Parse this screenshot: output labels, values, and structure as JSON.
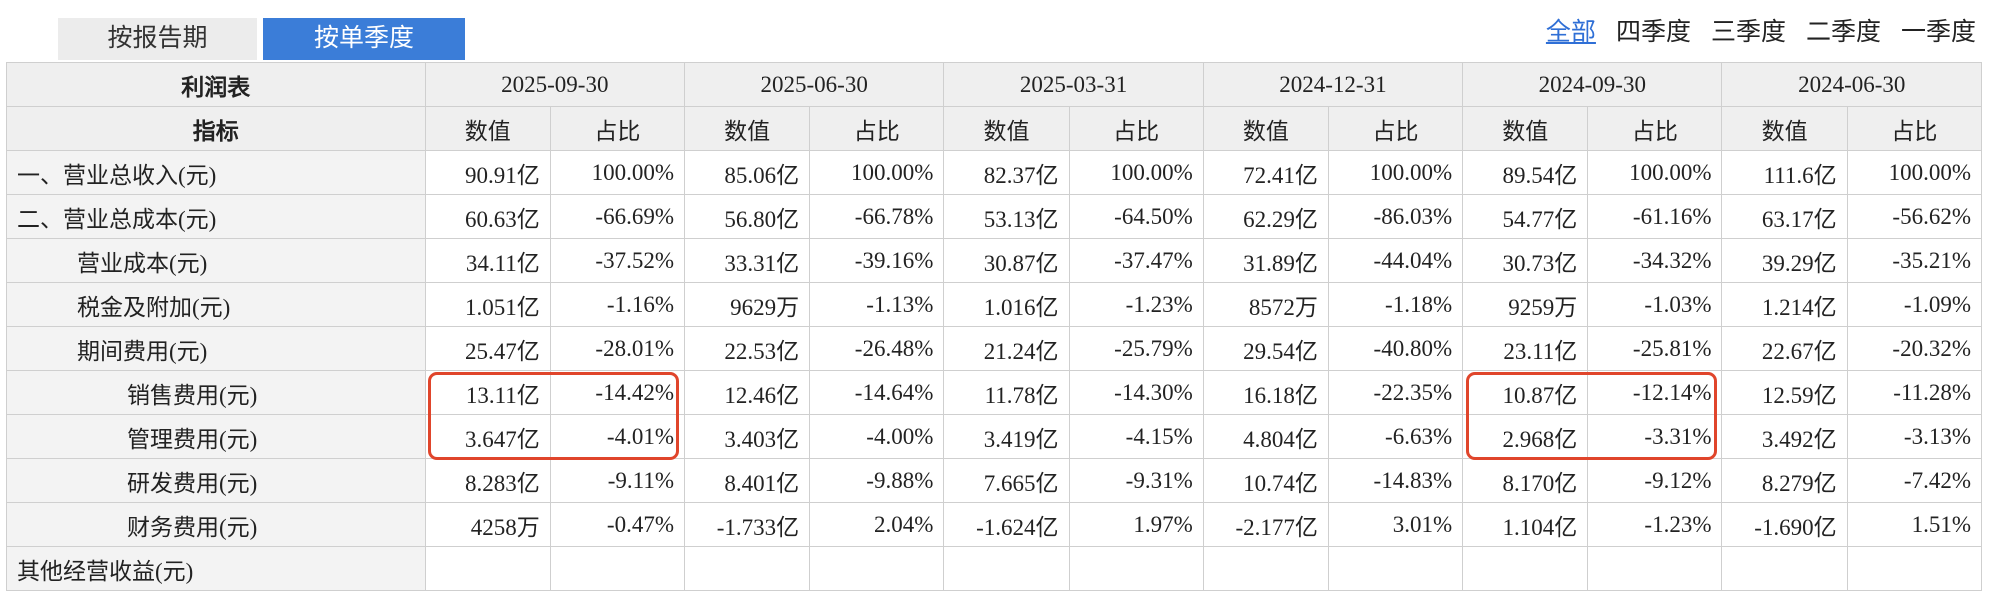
{
  "tabs": [
    "按报告期",
    "按单季度"
  ],
  "filters": [
    "全部",
    "四季度",
    "三季度",
    "二季度",
    "一季度"
  ],
  "table": {
    "title": "利润表",
    "periods": [
      "2025-09-30",
      "2025-06-30",
      "2025-03-31",
      "2024-12-31",
      "2024-09-30",
      "2024-06-30"
    ],
    "indicator_header": "指标",
    "value_header": "数值",
    "share_header": "占比",
    "rows": [
      [
        "一、营业总收入(元)",
        "90.91亿",
        "100.00%",
        "85.06亿",
        "100.00%",
        "82.37亿",
        "100.00%",
        "72.41亿",
        "100.00%",
        "89.54亿",
        "100.00%",
        "111.6亿",
        "100.00%"
      ],
      [
        "二、营业总成本(元)",
        "60.63亿",
        "-66.69%",
        "56.80亿",
        "-66.78%",
        "53.13亿",
        "-64.50%",
        "62.29亿",
        "-86.03%",
        "54.77亿",
        "-61.16%",
        "63.17亿",
        "-56.62%"
      ],
      [
        "营业成本(元)",
        "34.11亿",
        "-37.52%",
        "33.31亿",
        "-39.16%",
        "30.87亿",
        "-37.47%",
        "31.89亿",
        "-44.04%",
        "30.73亿",
        "-34.32%",
        "39.29亿",
        "-35.21%"
      ],
      [
        "税金及附加(元)",
        "1.051亿",
        "-1.16%",
        "9629万",
        "-1.13%",
        "1.016亿",
        "-1.23%",
        "8572万",
        "-1.18%",
        "9259万",
        "-1.03%",
        "1.214亿",
        "-1.09%"
      ],
      [
        "期间费用(元)",
        "25.47亿",
        "-28.01%",
        "22.53亿",
        "-26.48%",
        "21.24亿",
        "-25.79%",
        "29.54亿",
        "-40.80%",
        "23.11亿",
        "-25.81%",
        "22.67亿",
        "-20.32%"
      ],
      [
        "销售费用(元)",
        "13.11亿",
        "-14.42%",
        "12.46亿",
        "-14.64%",
        "11.78亿",
        "-14.30%",
        "16.18亿",
        "-22.35%",
        "10.87亿",
        "-12.14%",
        "12.59亿",
        "-11.28%"
      ],
      [
        "管理费用(元)",
        "3.647亿",
        "-4.01%",
        "3.403亿",
        "-4.00%",
        "3.419亿",
        "-4.15%",
        "4.804亿",
        "-6.63%",
        "2.968亿",
        "-3.31%",
        "3.492亿",
        "-3.13%"
      ],
      [
        "研发费用(元)",
        "8.283亿",
        "-9.11%",
        "8.401亿",
        "-9.88%",
        "7.665亿",
        "-9.31%",
        "10.74亿",
        "-14.83%",
        "8.170亿",
        "-9.12%",
        "8.279亿",
        "-7.42%"
      ],
      [
        "财务费用(元)",
        "4258万",
        "-0.47%",
        "-1.733亿",
        "2.04%",
        "-1.624亿",
        "1.97%",
        "-2.177亿",
        "3.01%",
        "1.104亿",
        "-1.23%",
        "-1.690亿",
        "1.51%"
      ],
      [
        "其他经营收益(元)"
      ]
    ]
  }
}
